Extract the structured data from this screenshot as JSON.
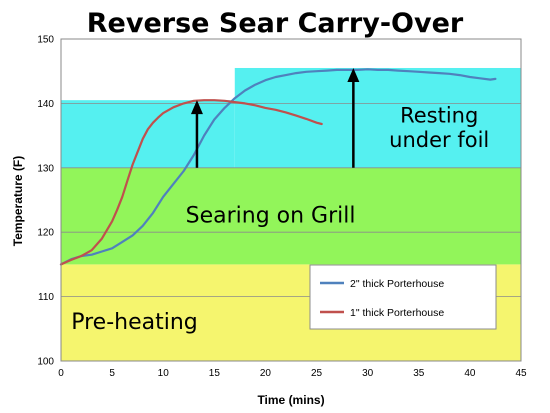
{
  "chart_data": {
    "type": "line",
    "title": "Reverse Sear Carry-Over",
    "xlabel": "Time (mins)",
    "ylabel": "Temperature (F)",
    "xlim": [
      0,
      45
    ],
    "ylim": [
      100,
      150
    ],
    "x_ticks": [
      0,
      5,
      10,
      15,
      20,
      25,
      30,
      35,
      40,
      45
    ],
    "y_ticks": [
      100,
      110,
      120,
      130,
      140,
      150
    ],
    "grid": "horizontal",
    "legend_position": "bottom-right",
    "regions": [
      {
        "label": "Pre-heating",
        "x": [
          0,
          45
        ],
        "y": [
          100,
          115
        ],
        "color": "#f5f56e"
      },
      {
        "label": "Searing on Grill",
        "x": [
          0,
          45
        ],
        "y": [
          115,
          130
        ],
        "color": "#92f55a"
      },
      {
        "label": "Resting under foil",
        "x": [
          0,
          17
        ],
        "y": [
          130,
          140.5
        ],
        "color": "#55f0f0"
      },
      {
        "label": "",
        "x": [
          17,
          45
        ],
        "y": [
          130,
          145.5
        ],
        "color": "#55f0f0"
      }
    ],
    "region_labels": [
      {
        "lines": [
          "Pre-heating"
        ],
        "x": 1,
        "y": 105,
        "size": 22,
        "anchor": "start"
      },
      {
        "lines": [
          "Searing on Grill"
        ],
        "x": 20.5,
        "y": 121.5,
        "size": 22,
        "anchor": "middle"
      },
      {
        "lines": [
          "Resting",
          "under foil"
        ],
        "x": 37,
        "y": 137,
        "size": 21,
        "anchor": "middle"
      }
    ],
    "arrows": [
      {
        "x": 13.3,
        "from": 130,
        "to": 140.5
      },
      {
        "x": 28.6,
        "from": 130,
        "to": 145.5
      }
    ],
    "series": [
      {
        "name": "2\" thick Porterhouse",
        "color": "#4f81bd",
        "x": [
          0,
          1,
          2,
          3,
          4,
          5,
          6,
          7,
          8,
          9,
          10,
          11,
          12,
          13,
          14,
          15,
          16,
          17,
          18,
          19,
          20,
          21,
          22,
          23,
          24,
          25,
          26,
          27,
          28,
          29,
          30,
          31,
          32,
          33,
          34,
          35,
          36,
          37,
          38,
          39,
          40,
          41,
          42,
          42.5
        ],
        "y": [
          115,
          115.8,
          116.3,
          116.5,
          117,
          117.5,
          118.5,
          119.5,
          121,
          123,
          125.5,
          127.5,
          129.5,
          132,
          135,
          137.5,
          139.3,
          140.8,
          142,
          142.9,
          143.6,
          144.1,
          144.4,
          144.7,
          144.9,
          145,
          145.1,
          145.2,
          145.2,
          145.2,
          145.3,
          145.2,
          145.2,
          145.1,
          145,
          144.9,
          144.8,
          144.7,
          144.6,
          144.4,
          144.1,
          143.9,
          143.7,
          143.8
        ]
      },
      {
        "name": "1\" thick Porterhouse",
        "color": "#c0504d",
        "x": [
          0,
          1,
          2,
          3,
          4,
          5,
          5.5,
          6,
          6.5,
          7,
          7.5,
          8,
          8.5,
          9,
          9.5,
          10,
          11,
          12,
          13,
          14,
          15,
          16,
          17,
          18,
          19,
          20,
          21,
          22,
          23,
          24,
          25,
          25.5
        ],
        "y": [
          115,
          115.7,
          116.3,
          117.2,
          119,
          121.7,
          123.5,
          125.5,
          128,
          130.5,
          132.5,
          134.5,
          136,
          137,
          137.8,
          138.5,
          139.4,
          140,
          140.4,
          140.5,
          140.5,
          140.4,
          140.2,
          140,
          139.7,
          139.3,
          139,
          138.6,
          138.1,
          137.6,
          137,
          136.8
        ]
      }
    ]
  }
}
